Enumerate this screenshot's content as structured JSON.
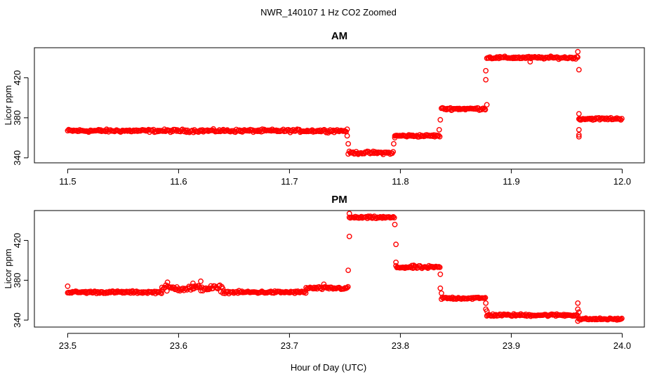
{
  "figure_title": "NWR_140107  1 Hz CO2 Zoomed",
  "colors": {
    "points": "#ff0000",
    "axes": "#000000",
    "background": "#ffffff"
  },
  "chart_data": [
    {
      "type": "scatter",
      "title": "AM",
      "xlabel": "",
      "ylabel": "Licor ppm",
      "xlim": [
        11.47,
        12.02
      ],
      "ylim": [
        335,
        450
      ],
      "xticks": [
        11.5,
        11.6,
        11.7,
        11.8,
        11.9,
        12.0
      ],
      "xtick_labels": [
        "11.5",
        "11.6",
        "11.7",
        "11.8",
        "11.9",
        "12.0"
      ],
      "yticks": [
        340,
        380,
        420
      ],
      "ytick_labels": [
        "340",
        "380",
        "420"
      ],
      "grid": false,
      "segments": [
        {
          "x0": 11.5,
          "x1": 11.752,
          "y": 367,
          "noise": 1.2
        },
        {
          "x0": 11.753,
          "x1": 11.794,
          "y": 345,
          "noise": 1.2
        },
        {
          "x0": 11.795,
          "x1": 11.836,
          "y": 362,
          "noise": 1.0
        },
        {
          "x0": 11.837,
          "x1": 11.877,
          "y": 389,
          "noise": 1.0
        },
        {
          "x0": 11.878,
          "x1": 11.96,
          "y": 440,
          "noise": 1.0
        },
        {
          "x0": 11.961,
          "x1": 12.0,
          "y": 379,
          "noise": 1.0
        }
      ],
      "points": [
        [
          11.752,
          362
        ],
        [
          11.753,
          354
        ],
        [
          11.794,
          354
        ],
        [
          11.795,
          360
        ],
        [
          11.835,
          368
        ],
        [
          11.836,
          378
        ],
        [
          11.877,
          418
        ],
        [
          11.877,
          427
        ],
        [
          11.878,
          393
        ],
        [
          11.917,
          436
        ],
        [
          11.96,
          446
        ],
        [
          11.961,
          428
        ],
        [
          11.961,
          384
        ],
        [
          11.961,
          368
        ],
        [
          11.961,
          363
        ],
        [
          11.961,
          361
        ],
        [
          11.962,
          378
        ]
      ]
    },
    {
      "type": "scatter",
      "title": "PM",
      "xlabel": "Hour of Day (UTC)",
      "ylabel": "Licor ppm",
      "xlim": [
        23.47,
        24.02
      ],
      "ylim": [
        333,
        450
      ],
      "xticks": [
        23.5,
        23.6,
        23.7,
        23.8,
        23.9,
        24.0
      ],
      "xtick_labels": [
        "23.5",
        "23.6",
        "23.7",
        "23.8",
        "23.9",
        "24.0"
      ],
      "yticks": [
        340,
        380,
        420
      ],
      "ytick_labels": [
        "340",
        "380",
        "420"
      ],
      "grid": false,
      "segments": [
        {
          "x0": 23.5,
          "x1": 23.585,
          "y": 368,
          "noise": 1.0
        },
        {
          "x0": 23.585,
          "x1": 23.64,
          "y": 372,
          "noise": 2.5
        },
        {
          "x0": 23.64,
          "x1": 23.715,
          "y": 368,
          "noise": 1.0
        },
        {
          "x0": 23.715,
          "x1": 23.753,
          "y": 372,
          "noise": 1.2
        },
        {
          "x0": 23.754,
          "x1": 23.795,
          "y": 443,
          "noise": 1.0
        },
        {
          "x0": 23.796,
          "x1": 23.836,
          "y": 393,
          "noise": 1.2
        },
        {
          "x0": 23.837,
          "x1": 23.877,
          "y": 362,
          "noise": 1.0
        },
        {
          "x0": 23.878,
          "x1": 23.96,
          "y": 345,
          "noise": 1.0
        },
        {
          "x0": 23.961,
          "x1": 24.0,
          "y": 341,
          "noise": 0.8
        }
      ],
      "points": [
        [
          23.5,
          374
        ],
        [
          23.753,
          390
        ],
        [
          23.754,
          424
        ],
        [
          23.754,
          447
        ],
        [
          23.795,
          436
        ],
        [
          23.796,
          416
        ],
        [
          23.796,
          398
        ],
        [
          23.812,
          395
        ],
        [
          23.836,
          386
        ],
        [
          23.836,
          372
        ],
        [
          23.837,
          367
        ],
        [
          23.877,
          357
        ],
        [
          23.877,
          351
        ],
        [
          23.878,
          349
        ],
        [
          23.96,
          357
        ],
        [
          23.96,
          351
        ],
        [
          23.96,
          339
        ],
        [
          23.961,
          348
        ],
        [
          23.59,
          378
        ],
        [
          23.613,
          377
        ],
        [
          23.62,
          379
        ],
        [
          23.731,
          376
        ]
      ]
    }
  ]
}
